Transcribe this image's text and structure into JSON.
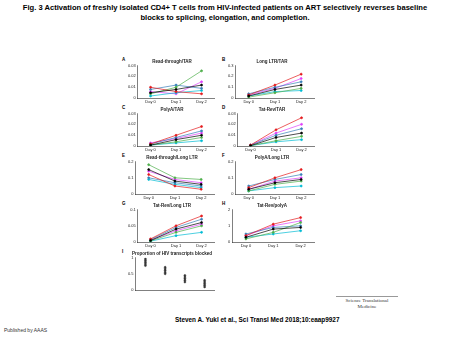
{
  "title": "Fig. 3 Activation of freshly isolated CD4+ T cells from HIV-infected patients on ART selectively reverses baseline blocks to splicing, elongation, and completion.",
  "citation": "Steven A. Yukl et al., Sci Transl Med 2018;10:eaap9927",
  "publisher": "Published by AAAS",
  "logo": "Science Translational Medicine",
  "chart_data": [
    {
      "panel": "A",
      "type": "line",
      "title": "Read-through/TAR",
      "categories": [
        "Day 0",
        "Day 1",
        "Day 2"
      ],
      "ylim": [
        0,
        0.03
      ],
      "yticks": [
        0,
        0.01,
        0.02,
        0.03
      ],
      "grid": false,
      "marker": "circle",
      "series": [
        {
          "color": "#000000",
          "values": [
            0.005,
            0.008,
            0.012
          ]
        },
        {
          "color": "#e41a1c",
          "values": [
            0.01,
            0.006,
            0.004
          ]
        },
        {
          "color": "#4daf4a",
          "values": [
            0.004,
            0.01,
            0.025
          ]
        },
        {
          "color": "#377eb8",
          "values": [
            0.008,
            0.012,
            0.009
          ]
        },
        {
          "color": "#00bcd4",
          "values": [
            0.002,
            0.005,
            0.007
          ]
        },
        {
          "color": "#e040fb",
          "values": [
            0.006,
            0.004,
            0.015
          ]
        }
      ]
    },
    {
      "panel": "B",
      "type": "line",
      "title": "Long LTR/TAR",
      "categories": [
        "Day 0",
        "Day 1",
        "Day 2"
      ],
      "ylim": [
        0,
        0.3
      ],
      "yticks": [
        0,
        0.1,
        0.2,
        0.3
      ],
      "grid": false,
      "marker": "circle",
      "series": [
        {
          "color": "#000000",
          "values": [
            0.02,
            0.08,
            0.12
          ]
        },
        {
          "color": "#e41a1c",
          "values": [
            0.03,
            0.12,
            0.22
          ]
        },
        {
          "color": "#4daf4a",
          "values": [
            0.01,
            0.05,
            0.09
          ]
        },
        {
          "color": "#377eb8",
          "values": [
            0.04,
            0.1,
            0.15
          ]
        },
        {
          "color": "#00bcd4",
          "values": [
            0.02,
            0.06,
            0.07
          ]
        },
        {
          "color": "#e040fb",
          "values": [
            0.03,
            0.09,
            0.18
          ]
        }
      ]
    },
    {
      "panel": "C",
      "type": "line",
      "title": "PolyA/TAR",
      "categories": [
        "Day 0",
        "Day 1",
        "Day 2"
      ],
      "ylim": [
        0,
        0.03
      ],
      "yticks": [
        0,
        0.01,
        0.02,
        0.03
      ],
      "grid": false,
      "marker": "circle",
      "series": [
        {
          "color": "#000000",
          "values": [
            0.001,
            0.006,
            0.01
          ]
        },
        {
          "color": "#e41a1c",
          "values": [
            0.002,
            0.01,
            0.018
          ]
        },
        {
          "color": "#4daf4a",
          "values": [
            0.001,
            0.004,
            0.008
          ]
        },
        {
          "color": "#377eb8",
          "values": [
            0.002,
            0.008,
            0.014
          ]
        },
        {
          "color": "#00bcd4",
          "values": [
            0.001,
            0.003,
            0.005
          ]
        },
        {
          "color": "#e040fb",
          "values": [
            0.003,
            0.007,
            0.012
          ]
        }
      ]
    },
    {
      "panel": "D",
      "type": "line",
      "title": "Tat-Rev/TAR",
      "categories": [
        "Day 0",
        "Day 1",
        "Day 2"
      ],
      "ylim": [
        0,
        0.03
      ],
      "yticks": [
        0,
        0.01,
        0.02,
        0.03
      ],
      "grid": false,
      "marker": "circle",
      "series": [
        {
          "color": "#000000",
          "values": [
            0.0005,
            0.008,
            0.012
          ]
        },
        {
          "color": "#e41a1c",
          "values": [
            0.001,
            0.015,
            0.026
          ]
        },
        {
          "color": "#4daf4a",
          "values": [
            0.0005,
            0.005,
            0.009
          ]
        },
        {
          "color": "#377eb8",
          "values": [
            0.001,
            0.01,
            0.016
          ]
        },
        {
          "color": "#00bcd4",
          "values": [
            0.0005,
            0.004,
            0.006
          ]
        },
        {
          "color": "#e040fb",
          "values": [
            0.001,
            0.012,
            0.02
          ]
        }
      ]
    },
    {
      "panel": "E",
      "type": "line",
      "title": "Read-through/Long LTR",
      "categories": [
        "Day 0",
        "Day 1",
        "Day 2"
      ],
      "ylim": [
        0,
        0.2
      ],
      "yticks": [
        0,
        0.1,
        0.2
      ],
      "grid": false,
      "marker": "circle",
      "series": [
        {
          "color": "#000000",
          "values": [
            0.15,
            0.08,
            0.06
          ]
        },
        {
          "color": "#e41a1c",
          "values": [
            0.12,
            0.05,
            0.03
          ]
        },
        {
          "color": "#4daf4a",
          "values": [
            0.18,
            0.1,
            0.09
          ]
        },
        {
          "color": "#377eb8",
          "values": [
            0.1,
            0.07,
            0.05
          ]
        },
        {
          "color": "#00bcd4",
          "values": [
            0.09,
            0.06,
            0.04
          ]
        },
        {
          "color": "#e040fb",
          "values": [
            0.14,
            0.09,
            0.07
          ]
        }
      ]
    },
    {
      "panel": "F",
      "type": "line",
      "title": "PolyA/Long LTR",
      "categories": [
        "Day 0",
        "Day 1",
        "Day 2"
      ],
      "ylim": [
        0,
        0.2
      ],
      "yticks": [
        0,
        0.1,
        0.2
      ],
      "grid": false,
      "marker": "circle",
      "series": [
        {
          "color": "#000000",
          "values": [
            0.03,
            0.07,
            0.09
          ]
        },
        {
          "color": "#e41a1c",
          "values": [
            0.04,
            0.1,
            0.15
          ]
        },
        {
          "color": "#4daf4a",
          "values": [
            0.02,
            0.06,
            0.08
          ]
        },
        {
          "color": "#377eb8",
          "values": [
            0.05,
            0.09,
            0.12
          ]
        },
        {
          "color": "#00bcd4",
          "values": [
            0.02,
            0.04,
            0.05
          ]
        },
        {
          "color": "#e040fb",
          "values": [
            0.03,
            0.08,
            0.1
          ]
        }
      ]
    },
    {
      "panel": "G",
      "type": "line",
      "title": "Tat-Rev/Long LTR",
      "categories": [
        "Day 0",
        "Day 1",
        "Day 2"
      ],
      "ylim": [
        0,
        0.1
      ],
      "yticks": [
        0,
        0.05,
        0.1
      ],
      "grid": false,
      "marker": "circle",
      "series": [
        {
          "color": "#000000",
          "values": [
            0.005,
            0.04,
            0.06
          ]
        },
        {
          "color": "#e41a1c",
          "values": [
            0.01,
            0.05,
            0.08
          ]
        },
        {
          "color": "#4daf4a",
          "values": [
            0.004,
            0.03,
            0.05
          ]
        },
        {
          "color": "#377eb8",
          "values": [
            0.008,
            0.045,
            0.07
          ]
        },
        {
          "color": "#00bcd4",
          "values": [
            0.003,
            0.02,
            0.03
          ]
        },
        {
          "color": "#e040fb",
          "values": [
            0.006,
            0.035,
            0.055
          ]
        }
      ]
    },
    {
      "panel": "H",
      "type": "line",
      "title": "Tat-Rev/polyA",
      "categories": [
        "Day 0",
        "Day 1",
        "Day 2"
      ],
      "ylim": [
        0,
        2
      ],
      "yticks": [
        0,
        1,
        2
      ],
      "grid": false,
      "marker": "circle",
      "series": [
        {
          "color": "#000000",
          "values": [
            0.3,
            0.8,
            0.9
          ]
        },
        {
          "color": "#e41a1c",
          "values": [
            0.4,
            1.1,
            1.5
          ]
        },
        {
          "color": "#4daf4a",
          "values": [
            0.2,
            0.6,
            1.2
          ]
        },
        {
          "color": "#377eb8",
          "values": [
            0.5,
            0.9,
            1.0
          ]
        },
        {
          "color": "#00bcd4",
          "values": [
            0.3,
            0.5,
            0.7
          ]
        },
        {
          "color": "#e040fb",
          "values": [
            0.4,
            1.0,
            1.3
          ]
        }
      ]
    },
    {
      "panel": "I",
      "type": "strip",
      "title": "Proportion of HIV transcripts blocked",
      "categories": [
        null,
        null,
        null,
        null
      ],
      "ylim": [
        0,
        1
      ],
      "yticks": [
        0,
        0.5,
        1
      ],
      "grid": false,
      "marker": "circle",
      "color": "#333333",
      "values": [
        [
          0.9,
          0.85,
          0.8,
          0.95,
          0.75
        ],
        [
          0.6,
          0.55,
          0.7,
          0.5,
          0.65
        ],
        [
          0.3,
          0.4,
          0.35,
          0.25,
          0.45
        ],
        [
          0.2,
          0.15,
          0.3,
          0.1,
          0.25
        ]
      ]
    }
  ]
}
